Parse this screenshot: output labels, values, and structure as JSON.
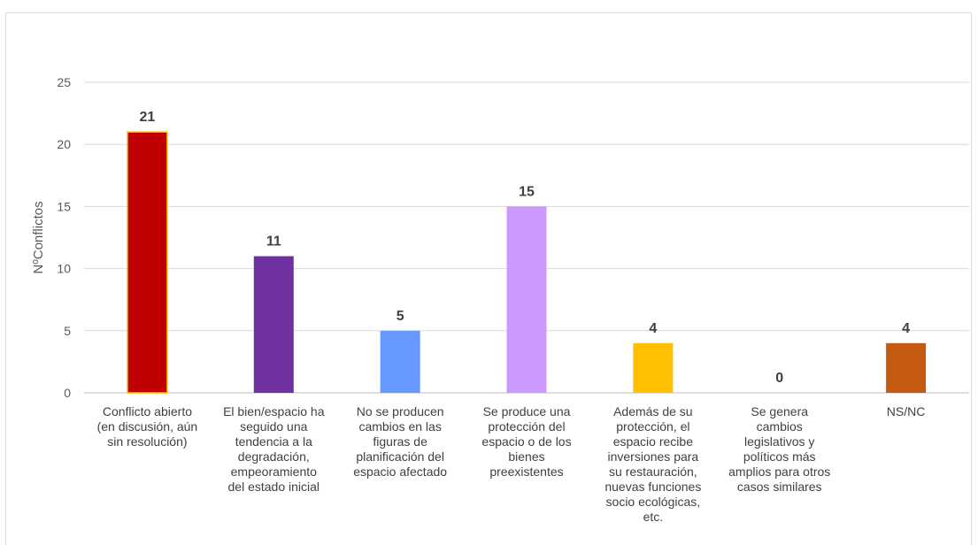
{
  "chart_data": {
    "type": "bar",
    "title": "",
    "xlabel": "",
    "ylabel": "NºConflictos",
    "ylim": [
      0,
      25
    ],
    "yticks": [
      0,
      5,
      10,
      15,
      20,
      25
    ],
    "grid": true,
    "legend": "none",
    "categories": [
      [
        "Conflicto abierto",
        "(en discusión, aún",
        "sin resolución)"
      ],
      [
        "El bien/espacio ha",
        "seguido una",
        "tendencia a la",
        "degradación,",
        "empeoramiento",
        "del estado inicial"
      ],
      [
        "No se producen",
        "cambios en las",
        "figuras de",
        "planificación del",
        "espacio afectado"
      ],
      [
        "Se produce una",
        "protección del",
        "espacio o de los",
        "bienes",
        "preexistentes"
      ],
      [
        "Además de su",
        "protección, el",
        "espacio recibe",
        "inversiones para",
        "su restauración,",
        "nuevas funciones",
        "socio ecológicas,",
        "etc."
      ],
      [
        "Se genera",
        "cambios",
        "legislativos y",
        "políticos más",
        "amplios para otros",
        "casos similares"
      ],
      [
        "NS/NC"
      ]
    ],
    "values": [
      21,
      11,
      5,
      15,
      4,
      0,
      4
    ],
    "data_labels": [
      "21",
      "11",
      "5",
      "15",
      "4",
      "0",
      "4"
    ],
    "colors": [
      "#c00000",
      "#7030a0",
      "#6699ff",
      "#cc99ff",
      "#ffc000",
      "#ffffff",
      "#c55a11"
    ],
    "highlight_border": "#ffc000"
  }
}
